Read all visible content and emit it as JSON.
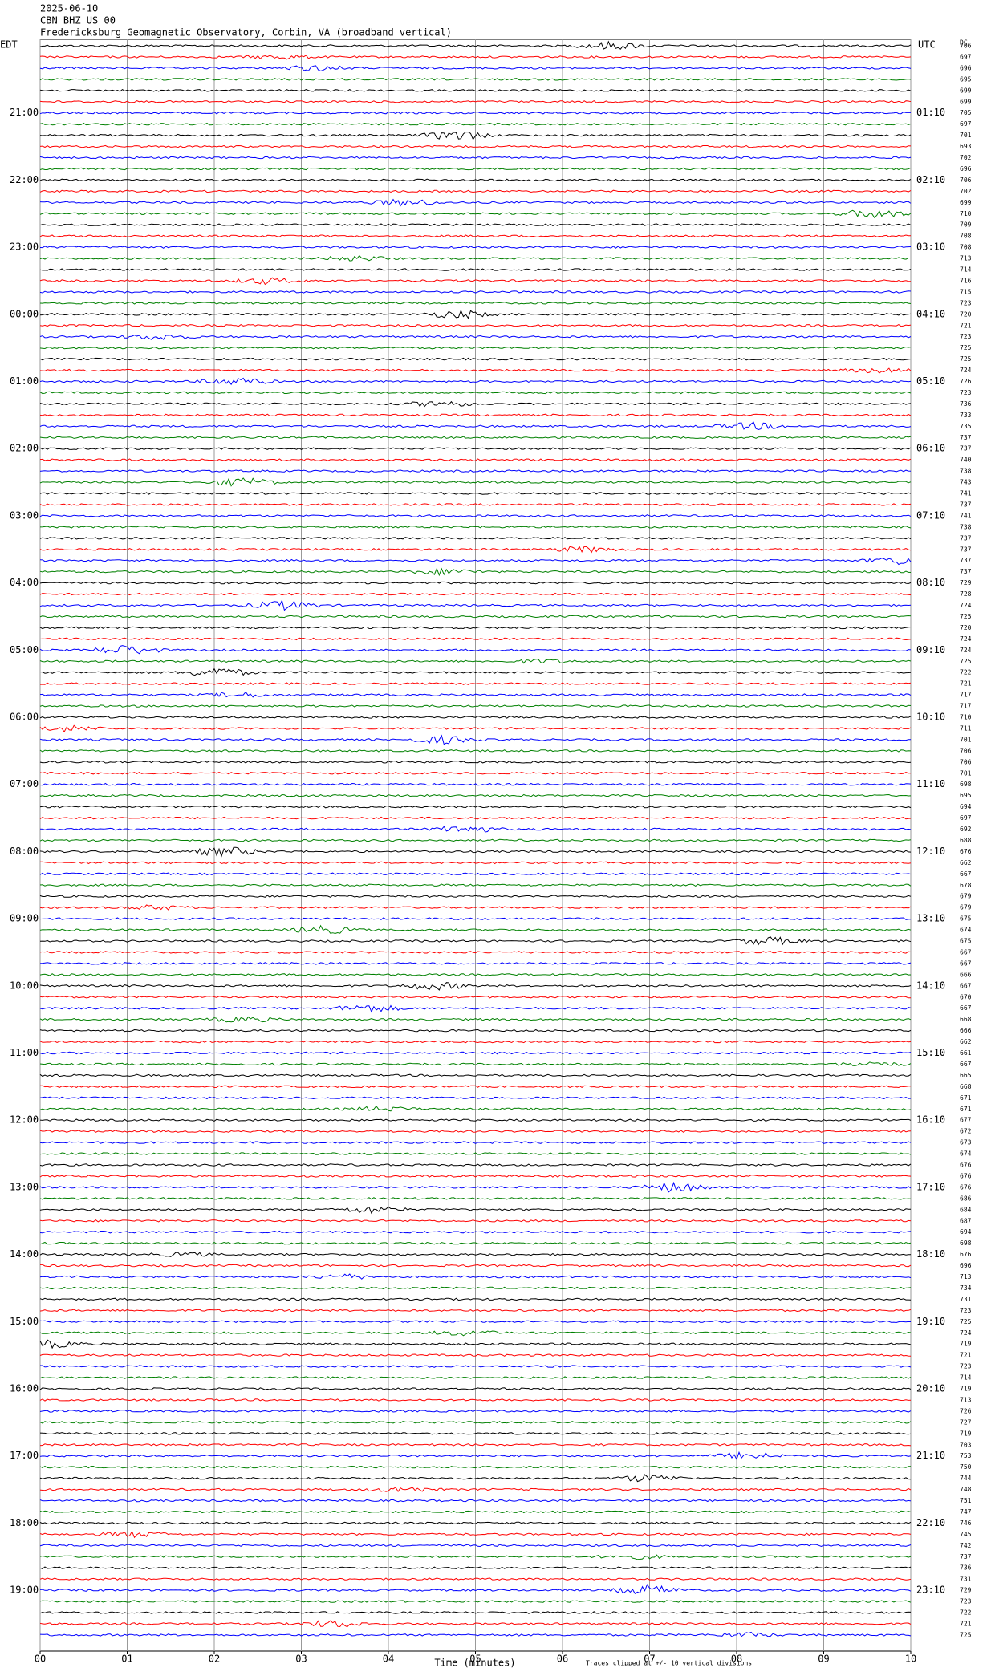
{
  "chart_data": {
    "type": "helicorder",
    "title_lines": [
      "2025-06-10",
      "CBN BHZ US 00",
      "Fredericksburg Geomagnetic Observatory, Corbin, VA (broadband vertical)"
    ],
    "left_header": "EDT",
    "right_header": "UTC",
    "dc_header": "DC",
    "trace_colors": [
      "#000000",
      "#ff0000",
      "#0000ff",
      "#008000"
    ],
    "left_hour_labels": [
      "21:00",
      "22:00",
      "23:00",
      "00:00",
      "01:00",
      "02:00",
      "03:00",
      "04:00",
      "05:00",
      "06:00",
      "07:00",
      "08:00",
      "09:00",
      "10:00",
      "11:00",
      "12:00",
      "13:00",
      "14:00",
      "15:00",
      "16:00",
      "17:00",
      "18:00",
      "19:00"
    ],
    "right_hour_labels": [
      "01:10",
      "02:10",
      "03:10",
      "04:10",
      "05:10",
      "06:10",
      "07:10",
      "08:10",
      "09:10",
      "10:10",
      "11:10",
      "12:10",
      "13:10",
      "14:10",
      "15:10",
      "16:10",
      "17:10",
      "18:10",
      "19:10",
      "20:10",
      "21:10",
      "22:10",
      "23:10"
    ],
    "dc_values": [
      706,
      697,
      696,
      695,
      699,
      699,
      705,
      697,
      701,
      693,
      702,
      696,
      706,
      702,
      699,
      710,
      709,
      708,
      708,
      713,
      714,
      716,
      715,
      723,
      720,
      721,
      723,
      725,
      725,
      724,
      726,
      723,
      736,
      733,
      735,
      737,
      737,
      740,
      738,
      743,
      741,
      737,
      741,
      738,
      737,
      737,
      737,
      737,
      729,
      728,
      724,
      725,
      720,
      724,
      724,
      725,
      722,
      721,
      717,
      717,
      710,
      711,
      701,
      706,
      706,
      701,
      698,
      695,
      694,
      697,
      692,
      688,
      676,
      662,
      667,
      678,
      679,
      679,
      675,
      674,
      675,
      667,
      667,
      666,
      667,
      670,
      667,
      668,
      666,
      662,
      661,
      667,
      665,
      668,
      671,
      671,
      677,
      672,
      673,
      674,
      676,
      676,
      676,
      686,
      684,
      687,
      694,
      698,
      676,
      696,
      713,
      734,
      731,
      723,
      725,
      724,
      719,
      721,
      723,
      714,
      719,
      713,
      726,
      727,
      719,
      703,
      753,
      750,
      744,
      748,
      751,
      747,
      746,
      745,
      742,
      737,
      736,
      731,
      729,
      723,
      722,
      721,
      725
    ],
    "xlim": [
      0,
      10
    ],
    "xticks": [
      {
        "value": 0,
        "label": "00"
      },
      {
        "value": 1,
        "label": "01"
      },
      {
        "value": 2,
        "label": "02"
      },
      {
        "value": 3,
        "label": "03"
      },
      {
        "value": 4,
        "label": "04"
      },
      {
        "value": 5,
        "label": "05"
      },
      {
        "value": 6,
        "label": "06"
      },
      {
        "value": 7,
        "label": "07"
      },
      {
        "value": 8,
        "label": "08"
      },
      {
        "value": 9,
        "label": "09"
      },
      {
        "value": 10,
        "label": "10"
      }
    ],
    "xlabel": "Time (minutes)",
    "note": "Traces clipped at +/- 10 vertical divisions",
    "grid": true
  }
}
